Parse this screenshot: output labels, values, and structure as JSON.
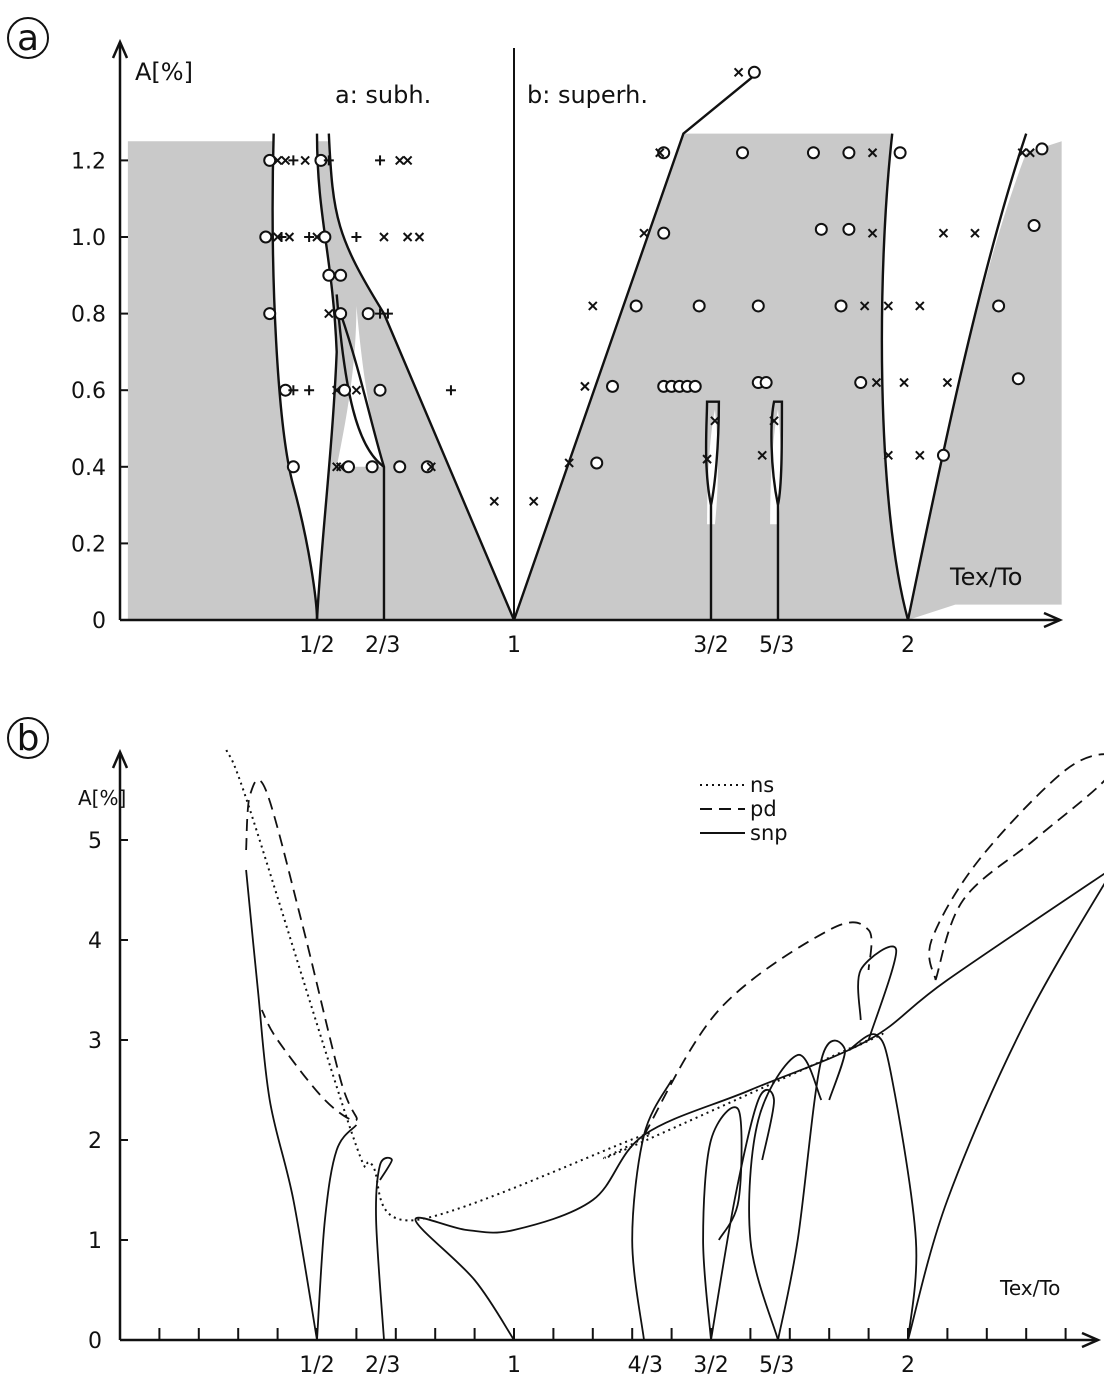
{
  "chart_data": [
    {
      "type": "scatter",
      "panel_label": "a",
      "ylabel": "A[%]",
      "xlabel": "Tex/To",
      "region_labels": [
        "a: subh.",
        "b: superh."
      ],
      "x_ticks": [
        "1/2",
        "2/3",
        "1",
        "3/2",
        "5/3",
        "2"
      ],
      "x_tick_values": [
        0.5,
        0.6667,
        1.0,
        1.5,
        1.6667,
        2.0
      ],
      "y_ticks": [
        "0",
        "0.2",
        "0.4",
        "0.6",
        "0.8",
        "1.0",
        "1.2"
      ],
      "y_tick_values": [
        0,
        0.2,
        0.4,
        0.6,
        0.8,
        1.0,
        1.2
      ],
      "xlim": [
        0.0,
        2.35
      ],
      "ylim": [
        0,
        1.4
      ],
      "shaded_regions": "chaotic region (gray)",
      "markers": {
        "o": [
          [
            0.38,
            1.2
          ],
          [
            0.51,
            1.2
          ],
          [
            0.37,
            1.0
          ],
          [
            0.52,
            1.0
          ],
          [
            0.53,
            0.9
          ],
          [
            0.56,
            0.9
          ],
          [
            0.38,
            0.8
          ],
          [
            0.56,
            0.8
          ],
          [
            0.63,
            0.8
          ],
          [
            0.42,
            0.6
          ],
          [
            0.57,
            0.6
          ],
          [
            0.66,
            0.6
          ],
          [
            0.44,
            0.4
          ],
          [
            0.58,
            0.4
          ],
          [
            0.64,
            0.4
          ],
          [
            0.71,
            0.4
          ],
          [
            0.78,
            0.4
          ],
          [
            1.38,
            1.22
          ],
          [
            1.58,
            1.22
          ],
          [
            1.76,
            1.22
          ],
          [
            1.85,
            1.22
          ],
          [
            1.98,
            1.22
          ],
          [
            2.34,
            1.23
          ],
          [
            1.38,
            1.01
          ],
          [
            1.78,
            1.02
          ],
          [
            1.85,
            1.02
          ],
          [
            2.32,
            1.03
          ],
          [
            1.31,
            0.82
          ],
          [
            1.47,
            0.82
          ],
          [
            1.62,
            0.82
          ],
          [
            1.83,
            0.82
          ],
          [
            2.23,
            0.82
          ],
          [
            1.25,
            0.61
          ],
          [
            1.38,
            0.61
          ],
          [
            1.4,
            0.61
          ],
          [
            1.42,
            0.61
          ],
          [
            1.44,
            0.61
          ],
          [
            1.46,
            0.61
          ],
          [
            1.62,
            0.62
          ],
          [
            1.64,
            0.62
          ],
          [
            1.88,
            0.62
          ],
          [
            2.28,
            0.63
          ],
          [
            1.21,
            0.41
          ],
          [
            2.09,
            0.43
          ],
          [
            1.61,
            1.43
          ]
        ],
        "x": [
          [
            0.4,
            1.2
          ],
          [
            0.42,
            1.2
          ],
          [
            0.47,
            1.2
          ],
          [
            0.71,
            1.2
          ],
          [
            0.73,
            1.2
          ],
          [
            0.4,
            1.0
          ],
          [
            0.43,
            1.0
          ],
          [
            0.5,
            1.0
          ],
          [
            0.67,
            1.0
          ],
          [
            0.73,
            1.0
          ],
          [
            0.76,
            1.0
          ],
          [
            0.53,
            0.8
          ],
          [
            0.55,
            0.6
          ],
          [
            0.6,
            0.6
          ],
          [
            0.79,
            0.4
          ],
          [
            0.55,
            0.4
          ],
          [
            0.56,
            0.4
          ],
          [
            0.95,
            0.31
          ],
          [
            1.05,
            0.31
          ],
          [
            1.14,
            0.41
          ],
          [
            1.18,
            0.61
          ],
          [
            1.2,
            0.82
          ],
          [
            1.33,
            1.01
          ],
          [
            1.37,
            1.22
          ],
          [
            1.51,
            0.52
          ],
          [
            1.49,
            0.42
          ],
          [
            1.66,
            0.52
          ],
          [
            1.63,
            0.43
          ],
          [
            1.91,
            1.22
          ],
          [
            2.29,
            1.22
          ],
          [
            2.31,
            1.22
          ],
          [
            1.91,
            1.01
          ],
          [
            2.09,
            1.01
          ],
          [
            2.17,
            1.01
          ],
          [
            1.89,
            0.82
          ],
          [
            1.95,
            0.82
          ],
          [
            2.03,
            0.82
          ],
          [
            1.92,
            0.62
          ],
          [
            1.99,
            0.62
          ],
          [
            2.1,
            0.62
          ],
          [
            1.95,
            0.43
          ],
          [
            2.03,
            0.43
          ],
          [
            1.57,
            1.43
          ]
        ],
        "+": [
          [
            0.44,
            1.2
          ],
          [
            0.53,
            1.2
          ],
          [
            0.66,
            1.2
          ],
          [
            0.41,
            1.0
          ],
          [
            0.48,
            1.0
          ],
          [
            0.6,
            1.0
          ],
          [
            0.66,
            0.8
          ],
          [
            0.68,
            0.8
          ],
          [
            0.44,
            0.6
          ],
          [
            0.48,
            0.6
          ],
          [
            0.84,
            0.6
          ]
        ]
      }
    },
    {
      "type": "line",
      "panel_label": "b",
      "ylabel": "A[%]",
      "xlabel": "Tex/To",
      "x_ticks": [
        "1/2",
        "2/3",
        "1",
        "4/3",
        "3/2",
        "5/3",
        "2"
      ],
      "x_tick_values": [
        0.5,
        0.6667,
        1.0,
        1.3333,
        1.5,
        1.6667,
        2.0
      ],
      "y_ticks": [
        "0",
        "1",
        "2",
        "3",
        "4",
        "5"
      ],
      "y_tick_values": [
        0,
        1,
        2,
        3,
        4,
        5
      ],
      "xlim": [
        0.0,
        2.5
      ],
      "ylim": [
        0,
        6
      ],
      "legend": {
        "placement": "top-right",
        "entries": [
          {
            "style": "dotted",
            "label": "ns"
          },
          {
            "style": "dashed",
            "label": "pd"
          },
          {
            "style": "solid",
            "label": "snp"
          }
        ]
      },
      "series": [
        {
          "name": "ns",
          "style": "dotted",
          "points": [
            [
              0.27,
              5.9
            ],
            [
              0.33,
              5.3
            ],
            [
              0.59,
              2.05
            ],
            [
              0.64,
              1.75
            ],
            [
              0.75,
              1.2
            ],
            [
              1.33,
              2.05
            ],
            [
              1.25,
              1.85
            ],
            [
              1.9,
              3.0
            ],
            [
              1.85,
              2.9
            ]
          ]
        },
        {
          "name": "pd",
          "style": "dashed",
          "points": [
            [
              0.32,
              4.9
            ],
            [
              0.33,
              5.45
            ],
            [
              0.37,
              5.5
            ],
            [
              0.46,
              4.2
            ],
            [
              0.56,
              2.6
            ],
            [
              0.6,
              2.2
            ],
            [
              0.52,
              2.4
            ],
            [
              0.4,
              3.0
            ],
            [
              0.36,
              3.3
            ]
          ]
        },
        {
          "name": "pd",
          "style": "dashed",
          "points": [
            [
              1.33,
              2.05
            ],
            [
              1.52,
              3.3
            ],
            [
              1.8,
              4.1
            ],
            [
              1.9,
              4.1
            ],
            [
              1.9,
              3.7
            ]
          ]
        },
        {
          "name": "pd",
          "style": "dashed",
          "points": [
            [
              2.07,
              3.6
            ],
            [
              2.14,
              4.4
            ],
            [
              2.32,
              5.0
            ],
            [
              2.5,
              5.6
            ],
            [
              2.52,
              5.85
            ],
            [
              2.4,
              5.7
            ],
            [
              2.18,
              4.8
            ],
            [
              2.06,
              4.0
            ],
            [
              2.07,
              3.6
            ]
          ]
        },
        {
          "name": "snp",
          "style": "solid",
          "points": [
            [
              0.5,
              0.0
            ],
            [
              0.44,
              1.4
            ],
            [
              0.38,
              2.4
            ],
            [
              0.35,
              3.5
            ],
            [
              0.32,
              4.7
            ]
          ]
        },
        {
          "name": "snp",
          "style": "solid",
          "points": [
            [
              0.5,
              0.0
            ],
            [
              0.52,
              1.2
            ],
            [
              0.55,
              1.9
            ],
            [
              0.6,
              2.15
            ]
          ]
        },
        {
          "name": "snp",
          "style": "solid",
          "points": [
            [
              0.67,
              0.0
            ],
            [
              0.65,
              1.2
            ],
            [
              0.66,
              1.75
            ],
            [
              0.69,
              1.8
            ],
            [
              0.66,
              1.6
            ]
          ]
        },
        {
          "name": "snp",
          "style": "solid",
          "points": [
            [
              1.0,
              0.0
            ],
            [
              0.9,
              0.6
            ],
            [
              0.75,
              1.2
            ],
            [
              0.88,
              1.1
            ],
            [
              1.0,
              1.1
            ],
            [
              1.2,
              1.4
            ],
            [
              1.33,
              2.05
            ],
            [
              1.6,
              2.5
            ],
            [
              1.9,
              3.0
            ],
            [
              2.1,
              3.6
            ],
            [
              2.55,
              4.8
            ]
          ]
        },
        {
          "name": "snp",
          "style": "solid",
          "points": [
            [
              1.33,
              0.0
            ],
            [
              1.3,
              1.0
            ],
            [
              1.33,
              2.05
            ],
            [
              1.4,
              2.6
            ]
          ]
        },
        {
          "name": "snp",
          "style": "solid",
          "points": [
            [
              1.5,
              0.0
            ],
            [
              1.48,
              1.0
            ],
            [
              1.5,
              2.0
            ],
            [
              1.57,
              2.3
            ],
            [
              1.57,
              1.4
            ],
            [
              1.52,
              1.0
            ]
          ]
        },
        {
          "name": "snp",
          "style": "solid",
          "points": [
            [
              1.5,
              0.0
            ],
            [
              1.56,
              1.4
            ],
            [
              1.62,
              2.4
            ],
            [
              1.66,
              2.4
            ],
            [
              1.63,
              1.8
            ]
          ]
        },
        {
          "name": "snp",
          "style": "solid",
          "points": [
            [
              1.67,
              0.0
            ],
            [
              1.72,
              1.0
            ],
            [
              1.78,
              2.8
            ],
            [
              1.84,
              2.9
            ],
            [
              1.8,
              2.4
            ]
          ]
        },
        {
          "name": "snp",
          "style": "solid",
          "points": [
            [
              1.67,
              0.0
            ],
            [
              1.6,
              1.0
            ],
            [
              1.62,
              2.2
            ],
            [
              1.72,
              2.85
            ],
            [
              1.78,
              2.4
            ]
          ]
        },
        {
          "name": "snp",
          "style": "solid",
          "points": [
            [
              1.85,
              2.9
            ],
            [
              1.92,
              3.05
            ],
            [
              1.96,
              2.6
            ],
            [
              2.02,
              1.0
            ],
            [
              2.0,
              0.0
            ]
          ]
        },
        {
          "name": "snp",
          "style": "solid",
          "points": [
            [
              2.0,
              0.0
            ],
            [
              2.1,
              1.4
            ],
            [
              2.3,
              3.2
            ],
            [
              2.55,
              4.9
            ]
          ]
        },
        {
          "name": "snp",
          "style": "solid",
          "points": [
            [
              1.88,
              3.2
            ],
            [
              1.88,
              3.7
            ],
            [
              1.97,
              3.9
            ],
            [
              1.9,
              3.0
            ]
          ]
        }
      ]
    }
  ]
}
